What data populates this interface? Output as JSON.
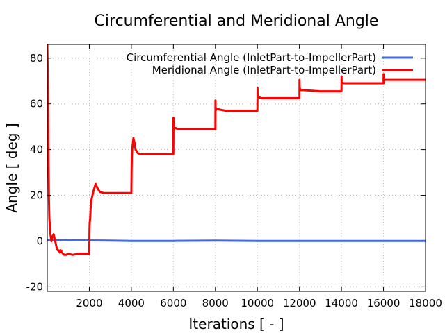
{
  "chart_data": {
    "type": "line",
    "title": "Circumferential and Meridional Angle",
    "xlabel": "Iterations [ - ]",
    "ylabel": "Angle [ deg ]",
    "xlim": [
      0,
      18000
    ],
    "ylim": [
      -22,
      86
    ],
    "xticks": [
      2000,
      4000,
      6000,
      8000,
      10000,
      12000,
      14000,
      16000,
      18000
    ],
    "yticks": [
      -20,
      0,
      20,
      40,
      60,
      80
    ],
    "grid": true,
    "legend_position": "top-right",
    "series": [
      {
        "name": "Circumferential Angle (InletPart-to-ImpellerPart)",
        "color": "#4169e1",
        "x": [
          0,
          200,
          500,
          1000,
          2000,
          3000,
          4000,
          6000,
          8000,
          10000,
          12000,
          14000,
          16000,
          18000
        ],
        "y": [
          0.5,
          0.4,
          0.3,
          0.4,
          0.3,
          0.2,
          0.1,
          0.1,
          0.2,
          0.1,
          0.1,
          0.1,
          0.1,
          0.1
        ]
      },
      {
        "name": "Meridional Angle (InletPart-to-ImpellerPart)",
        "color": "#ff0000",
        "x": [
          0,
          20,
          40,
          60,
          80,
          100,
          150,
          200,
          250,
          300,
          350,
          400,
          450,
          500,
          550,
          600,
          650,
          700,
          800,
          900,
          1000,
          1200,
          1500,
          2000,
          2010,
          2020,
          2040,
          2060,
          2100,
          2200,
          2300,
          2400,
          2500,
          2700,
          3000,
          3500,
          4000,
          4010,
          4020,
          4040,
          4100,
          4150,
          4200,
          4300,
          4400,
          4500,
          4700,
          5000,
          6000,
          6005,
          6010,
          6030,
          6100,
          6200,
          6500,
          7000,
          8000,
          8005,
          8010,
          8050,
          8200,
          8500,
          9000,
          10000,
          10005,
          10010,
          10050,
          10200,
          10500,
          11000,
          12000,
          12005,
          12010,
          12050,
          12200,
          13000,
          14000,
          14005,
          14010,
          14100,
          15000,
          16000,
          16005,
          16010,
          16100,
          17000,
          18000
        ],
        "y": [
          86,
          75,
          55,
          35,
          18,
          10,
          3,
          0,
          2,
          3,
          1,
          -1,
          -3,
          -4,
          -4,
          -5,
          -4,
          -5,
          -6,
          -6,
          -5.5,
          -6,
          -5.5,
          -5.5,
          5,
          8,
          10,
          14,
          18,
          22,
          25,
          23,
          21.5,
          21,
          21,
          21,
          21,
          30,
          36,
          40,
          45,
          43,
          40,
          38.5,
          38,
          38,
          38,
          38,
          38,
          54,
          48.5,
          49,
          49.5,
          49,
          49,
          49,
          49,
          61.5,
          57,
          58,
          57.5,
          57,
          57,
          57,
          67,
          64,
          63,
          62.5,
          62.5,
          62.5,
          62.5,
          70.5,
          67,
          66,
          66,
          65.5,
          65.5,
          72,
          69.5,
          69,
          69,
          69,
          73,
          70.5,
          70.5,
          70.5,
          70.5
        ]
      }
    ]
  }
}
